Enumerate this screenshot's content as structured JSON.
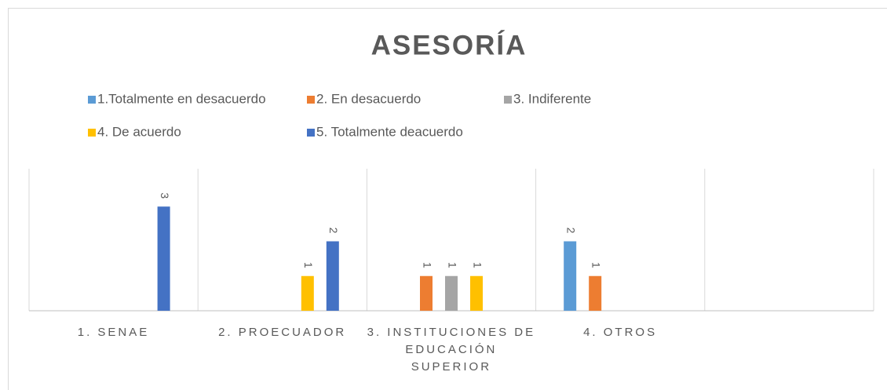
{
  "chart_data": {
    "type": "bar",
    "title": "ASESORÍA",
    "categories": [
      "1. SENAE",
      "2. PROECUADOR",
      "3. INSTITUCIONES DE EDUCACIÓN SUPERIOR",
      "4. OTROS",
      null
    ],
    "series": [
      {
        "name": "1.Totalmente en desacuerdo",
        "color": "#5B9BD5",
        "values": [
          null,
          null,
          null,
          2,
          null
        ]
      },
      {
        "name": "2. En desacuerdo",
        "color": "#ED7D31",
        "values": [
          null,
          null,
          1,
          1,
          null
        ]
      },
      {
        "name": "3. Indiferente",
        "color": "#A5A5A5",
        "values": [
          null,
          null,
          1,
          null,
          null
        ]
      },
      {
        "name": "4. De acuerdo",
        "color": "#FFC000",
        "values": [
          null,
          1,
          1,
          null,
          null
        ]
      },
      {
        "name": "5. Totalmente deacuerdo",
        "color": "#4472C4",
        "values": [
          3,
          2,
          null,
          null,
          null
        ]
      }
    ],
    "ylim": [
      0,
      4
    ],
    "legend": "top"
  }
}
